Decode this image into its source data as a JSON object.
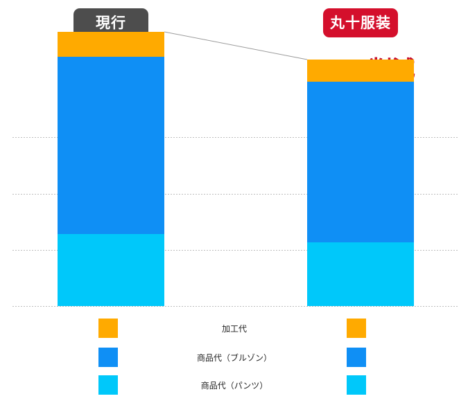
{
  "chart_data": {
    "type": "bar",
    "stacked": true,
    "categories": [
      "現行",
      "丸十服装"
    ],
    "series": [
      {
        "name": "商品代（パンツ）",
        "values": [
          26,
          23
        ],
        "color": "#00c8fa"
      },
      {
        "name": "商品代（ブルゾン）",
        "values": [
          64,
          58
        ],
        "color": "#0f8ff5"
      },
      {
        "name": "加工代",
        "values": [
          9,
          8
        ],
        "color": "#ffaa00"
      }
    ],
    "ylim": [
      0,
      100
    ],
    "grid": true,
    "legend_placement": "bottom",
    "annotation": "12% 削減"
  },
  "colors": {
    "current_badge": "#4d4d4d",
    "proposed_badge": "#d40f2c",
    "annotation": "#c8102e"
  }
}
